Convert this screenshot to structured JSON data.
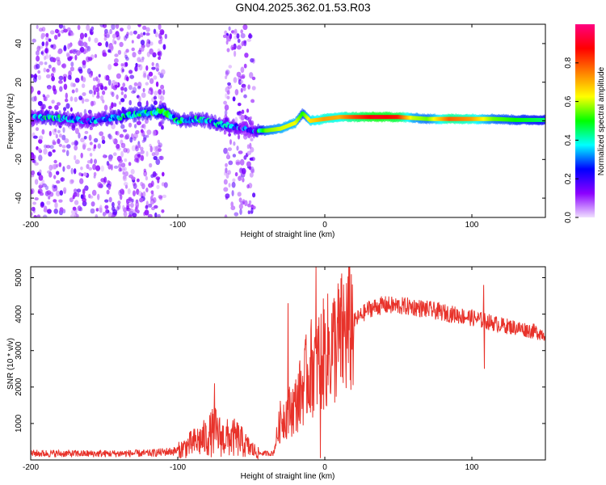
{
  "title": "GN04.2025.362.01.53.R03",
  "colors": {
    "line": "#e8322a",
    "frame": "#000000"
  },
  "chart_data": [
    {
      "type": "heatmap",
      "name": "spectrogram",
      "xlabel": "Height of straight line (km)",
      "ylabel": "Frequency (Hz)",
      "xlim": [
        -200,
        150
      ],
      "ylim": [
        -50,
        50
      ],
      "xticks": [
        "-200",
        "-100",
        "0",
        "100"
      ],
      "xtick_values": [
        -200,
        -100,
        0,
        100
      ],
      "yticks": [
        "-40",
        "-20",
        "0",
        "20",
        "40"
      ],
      "ytick_values": [
        -40,
        -20,
        0,
        20,
        40
      ],
      "colorbar": {
        "label": "Normalized spectral amplitude",
        "range": [
          0.0,
          1.0
        ],
        "ticks": [
          "0.0",
          "0.2",
          "0.4",
          "0.6",
          "0.8"
        ],
        "tick_values": [
          0.0,
          0.2,
          0.4,
          0.6,
          0.8
        ],
        "colormap": [
          "#f0e0ff",
          "#8b00ff",
          "#0000ff",
          "#00ffff",
          "#00ff00",
          "#ffff00",
          "#ff8000",
          "#ff0000",
          "#ff0080"
        ]
      },
      "ridge": [
        {
          "x": -200,
          "freq": 2,
          "amp": 0.22
        },
        {
          "x": -190,
          "freq": 2,
          "amp": 0.35
        },
        {
          "x": -175,
          "freq": 1,
          "amp": 0.3
        },
        {
          "x": -160,
          "freq": 0,
          "amp": 0.25
        },
        {
          "x": -140,
          "freq": 2,
          "amp": 0.35
        },
        {
          "x": -125,
          "freq": 4,
          "amp": 0.38
        },
        {
          "x": -110,
          "freq": 5,
          "amp": 0.42
        },
        {
          "x": -100,
          "freq": 0,
          "amp": 0.35
        },
        {
          "x": -85,
          "freq": 1,
          "amp": 0.33
        },
        {
          "x": -70,
          "freq": -2,
          "amp": 0.3
        },
        {
          "x": -60,
          "freq": -3,
          "amp": 0.25
        },
        {
          "x": -50,
          "freq": -5,
          "amp": 0.2
        },
        {
          "x": -40,
          "freq": -5,
          "amp": 0.55
        },
        {
          "x": -30,
          "freq": -4,
          "amp": 0.6
        },
        {
          "x": -20,
          "freq": -1,
          "amp": 0.62
        },
        {
          "x": -15,
          "freq": 4,
          "amp": 0.5
        },
        {
          "x": -10,
          "freq": 0,
          "amp": 0.65
        },
        {
          "x": 0,
          "freq": 1,
          "amp": 0.72
        },
        {
          "x": 10,
          "freq": 2,
          "amp": 0.7
        },
        {
          "x": 20,
          "freq": 2,
          "amp": 0.8
        },
        {
          "x": 35,
          "freq": 2,
          "amp": 0.9
        },
        {
          "x": 50,
          "freq": 2,
          "amp": 0.85
        },
        {
          "x": 60,
          "freq": 1.5,
          "amp": 0.6
        },
        {
          "x": 70,
          "freq": 1,
          "amp": 0.55
        },
        {
          "x": 85,
          "freq": 1,
          "amp": 0.78
        },
        {
          "x": 100,
          "freq": 1,
          "amp": 0.72
        },
        {
          "x": 115,
          "freq": 1,
          "amp": 0.55
        },
        {
          "x": 130,
          "freq": 0.5,
          "amp": 0.5
        },
        {
          "x": 150,
          "freq": 0.5,
          "amp": 0.45
        }
      ],
      "scatter_bands": [
        {
          "x_from": -200,
          "x_to": -108,
          "amp": 0.12
        },
        {
          "x_from": -68,
          "x_to": -48,
          "amp": 0.12
        }
      ]
    },
    {
      "type": "line",
      "name": "snr",
      "xlabel": "Height of straight line (km)",
      "ylabel": "SNR (10 * v/v)",
      "xlim": [
        -200,
        150
      ],
      "ylim": [
        0,
        5300
      ],
      "xticks": [
        "-200",
        "-100",
        "0",
        "100"
      ],
      "xtick_values": [
        -200,
        -100,
        0,
        100
      ],
      "yticks": [
        "1000",
        "2000",
        "3000",
        "4000",
        "5000"
      ],
      "ytick_values": [
        1000,
        2000,
        3000,
        4000,
        5000
      ],
      "envelope": [
        {
          "x": -200,
          "y": 180
        },
        {
          "x": -160,
          "y": 170
        },
        {
          "x": -120,
          "y": 180
        },
        {
          "x": -100,
          "y": 250
        },
        {
          "x": -90,
          "y": 450
        },
        {
          "x": -80,
          "y": 620
        },
        {
          "x": -75,
          "y": 800
        },
        {
          "x": -70,
          "y": 600
        },
        {
          "x": -60,
          "y": 600
        },
        {
          "x": -52,
          "y": 350
        },
        {
          "x": -45,
          "y": 180
        },
        {
          "x": -35,
          "y": 180
        },
        {
          "x": -30,
          "y": 1100
        },
        {
          "x": -20,
          "y": 1500
        },
        {
          "x": -10,
          "y": 2500
        },
        {
          "x": 0,
          "y": 2900
        },
        {
          "x": 10,
          "y": 3300
        },
        {
          "x": 20,
          "y": 3800
        },
        {
          "x": 30,
          "y": 4150
        },
        {
          "x": 40,
          "y": 4250
        },
        {
          "x": 60,
          "y": 4200
        },
        {
          "x": 80,
          "y": 4050
        },
        {
          "x": 100,
          "y": 3900
        },
        {
          "x": 120,
          "y": 3700
        },
        {
          "x": 140,
          "y": 3550
        },
        {
          "x": 150,
          "y": 3450
        }
      ],
      "spikes": [
        {
          "x": -75,
          "y": 2100
        },
        {
          "x": -25,
          "y": 4300
        },
        {
          "x": -6,
          "y": 5300
        },
        {
          "x": -3,
          "y": 50
        },
        {
          "x": 108,
          "y": 4800
        },
        {
          "x": 108.5,
          "y": 2500
        }
      ]
    }
  ]
}
